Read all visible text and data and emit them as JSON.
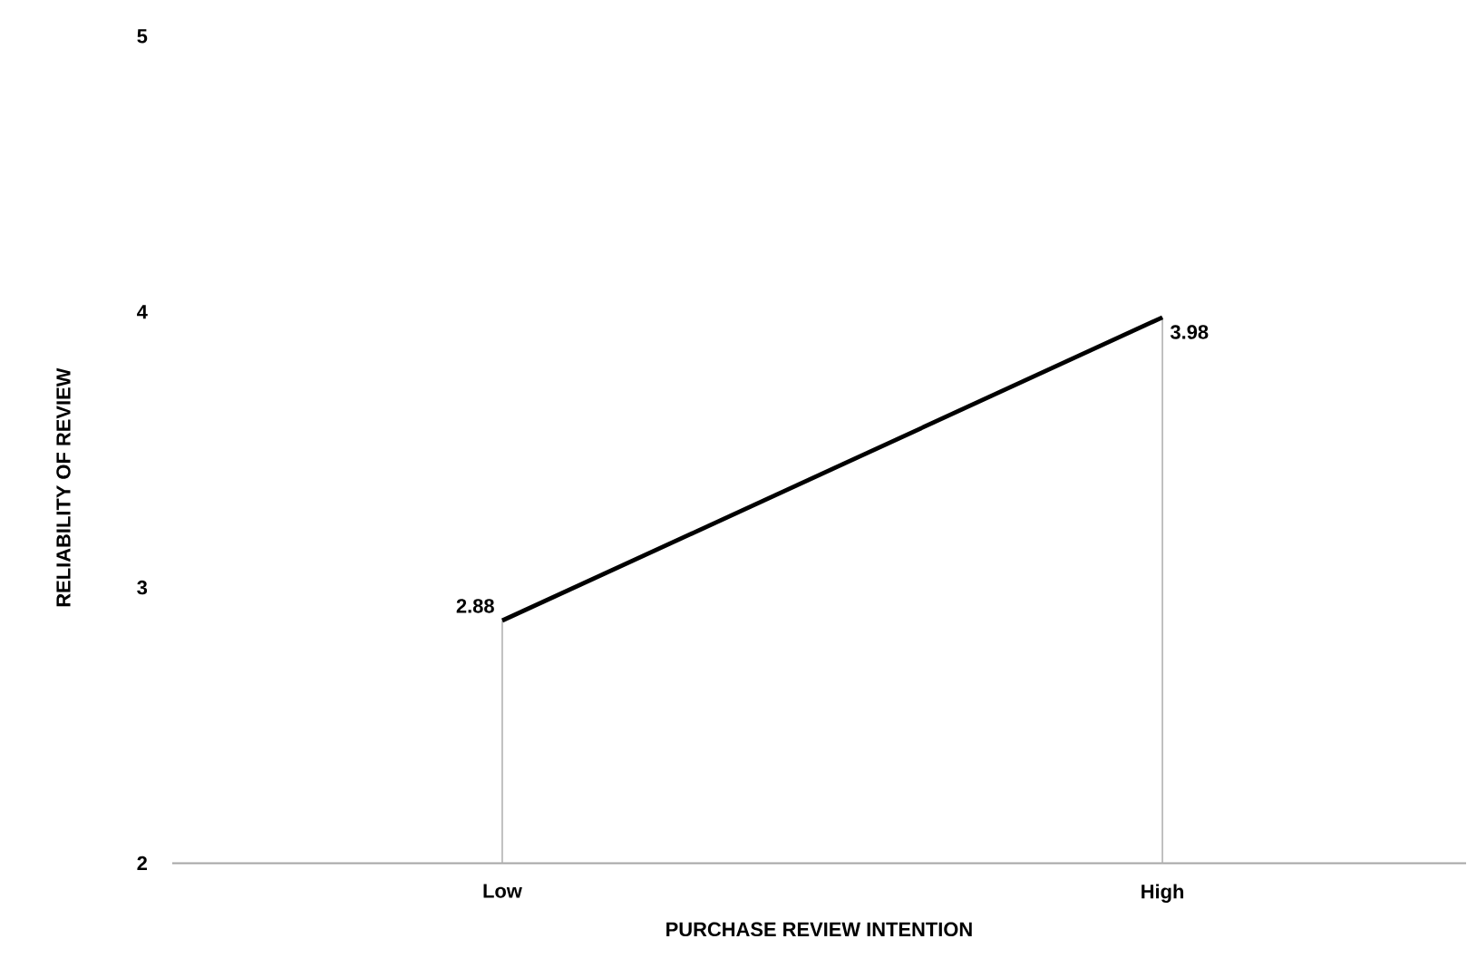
{
  "chart_data": {
    "type": "line",
    "xlabel": "PURCHASE REVIEW INTENTION",
    "ylabel": "RELIABILITY OF REVIEW",
    "categories": [
      "Low",
      "High"
    ],
    "series": [
      {
        "color": "#000000",
        "values": [
          2.88,
          3.98
        ]
      }
    ],
    "ylim": [
      2,
      5
    ],
    "yticks": [
      2,
      3,
      4,
      5
    ],
    "data_labels": true,
    "marker": "none",
    "line_style": "solid"
  }
}
